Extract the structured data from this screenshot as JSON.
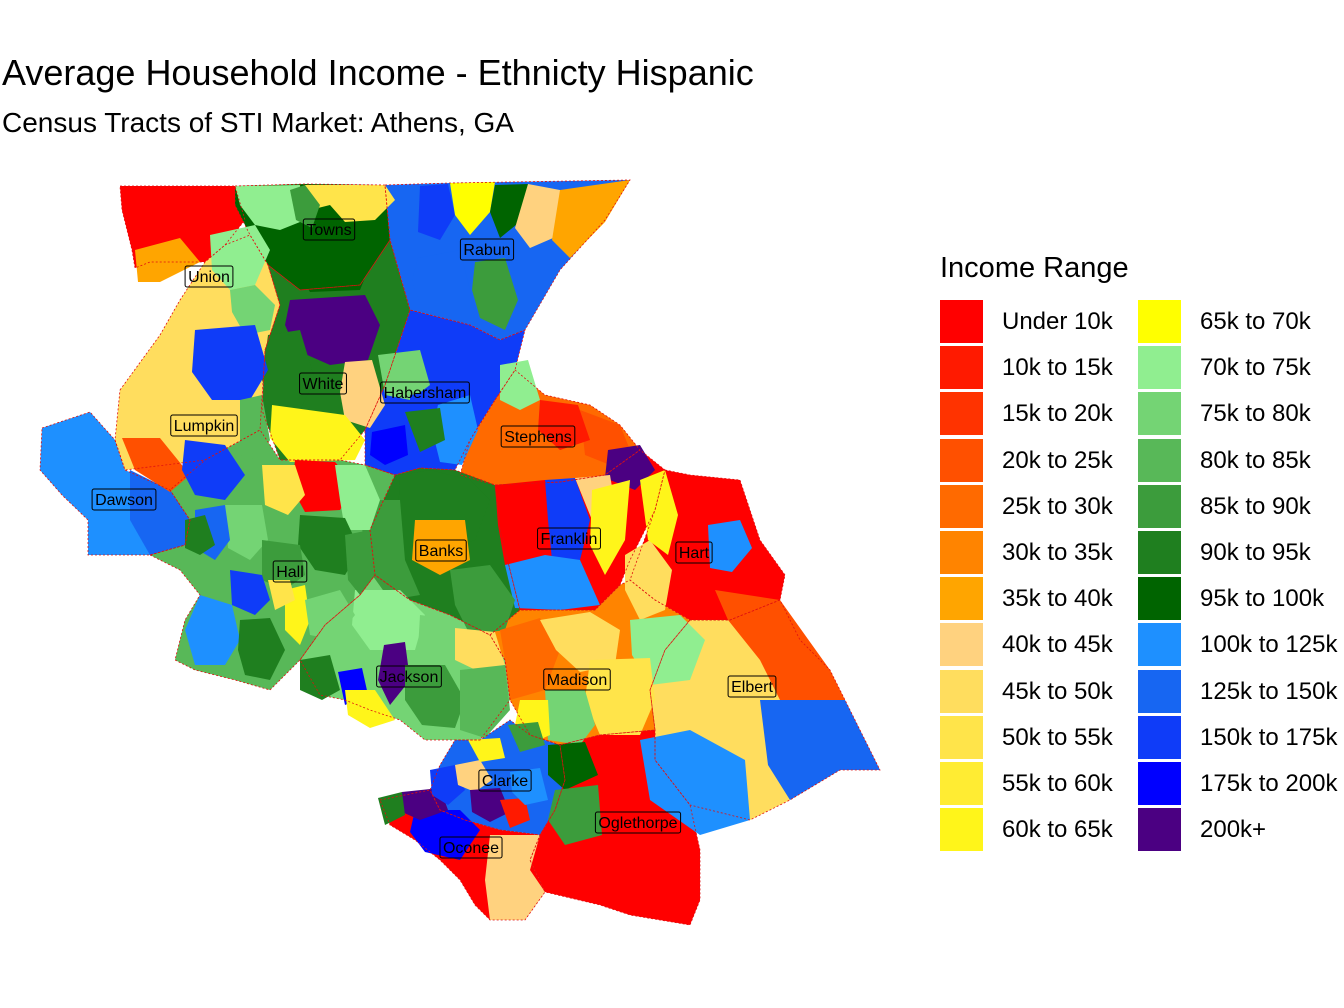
{
  "header": {
    "title": "Average Household Income - Ethnicty Hispanic",
    "subtitle": "Census Tracts of STI Market: Athens, GA"
  },
  "legend": {
    "title": "Income Range",
    "items": [
      {
        "label": "Under 10k",
        "color": "#ff0000"
      },
      {
        "label": "10k to 15k",
        "color": "#ff1a00"
      },
      {
        "label": "15k to 20k",
        "color": "#ff3300"
      },
      {
        "label": "20k to 25k",
        "color": "#ff5000"
      },
      {
        "label": "25k to 30k",
        "color": "#ff6a00"
      },
      {
        "label": "30k to 35k",
        "color": "#ff8400"
      },
      {
        "label": "35k to 40k",
        "color": "#ffa500"
      },
      {
        "label": "40k to 45k",
        "color": "#ffd27f"
      },
      {
        "label": "45k to 50k",
        "color": "#ffdd5e"
      },
      {
        "label": "50k to 55k",
        "color": "#ffe44a"
      },
      {
        "label": "55k to 60k",
        "color": "#ffec33"
      },
      {
        "label": "60k to 65k",
        "color": "#fff51a"
      },
      {
        "label": "65k to 70k",
        "color": "#ffff00"
      },
      {
        "label": "70k to 75k",
        "color": "#90ee90"
      },
      {
        "label": "75k to 80k",
        "color": "#74d474"
      },
      {
        "label": "80k to 85k",
        "color": "#58b858"
      },
      {
        "label": "85k to 90k",
        "color": "#3c9c3c"
      },
      {
        "label": "90k to 95k",
        "color": "#1f7f1f"
      },
      {
        "label": "95k to 100k",
        "color": "#006400"
      },
      {
        "label": "100k to 125k",
        "color": "#1e90ff"
      },
      {
        "label": "125k to 150k",
        "color": "#1766f2"
      },
      {
        "label": "150k to 175k",
        "color": "#0f3cf8"
      },
      {
        "label": "175k to 200k",
        "color": "#0000ff"
      },
      {
        "label": "200k+",
        "color": "#4b0082"
      }
    ]
  },
  "map": {
    "counties": [
      {
        "name": "Towns",
        "color": "#006400"
      },
      {
        "name": "Rabun",
        "color": "#1766f2"
      },
      {
        "name": "Union",
        "color": "#ff0000"
      },
      {
        "name": "White",
        "color": "#1f7f1f"
      },
      {
        "name": "Habersham",
        "color": "#0f3cf8"
      },
      {
        "name": "Lumpkin",
        "color": "#ffdd5e"
      },
      {
        "name": "Stephens",
        "color": "#ff6a00"
      },
      {
        "name": "Dawson",
        "color": "#1e90ff"
      },
      {
        "name": "Banks",
        "color": "#1f7f1f"
      },
      {
        "name": "Franklin",
        "color": "#ff0000"
      },
      {
        "name": "Hart",
        "color": "#ff0000"
      },
      {
        "name": "Hall",
        "color": "#58b858"
      },
      {
        "name": "Jackson",
        "color": "#74d474"
      },
      {
        "name": "Madison",
        "color": "#ff8400"
      },
      {
        "name": "Elbert",
        "color": "#ffdd5e"
      },
      {
        "name": "Clarke",
        "color": "#1766f2"
      },
      {
        "name": "Oglethorpe",
        "color": "#ff0000"
      },
      {
        "name": "Oconee",
        "color": "#ff0000"
      }
    ]
  }
}
